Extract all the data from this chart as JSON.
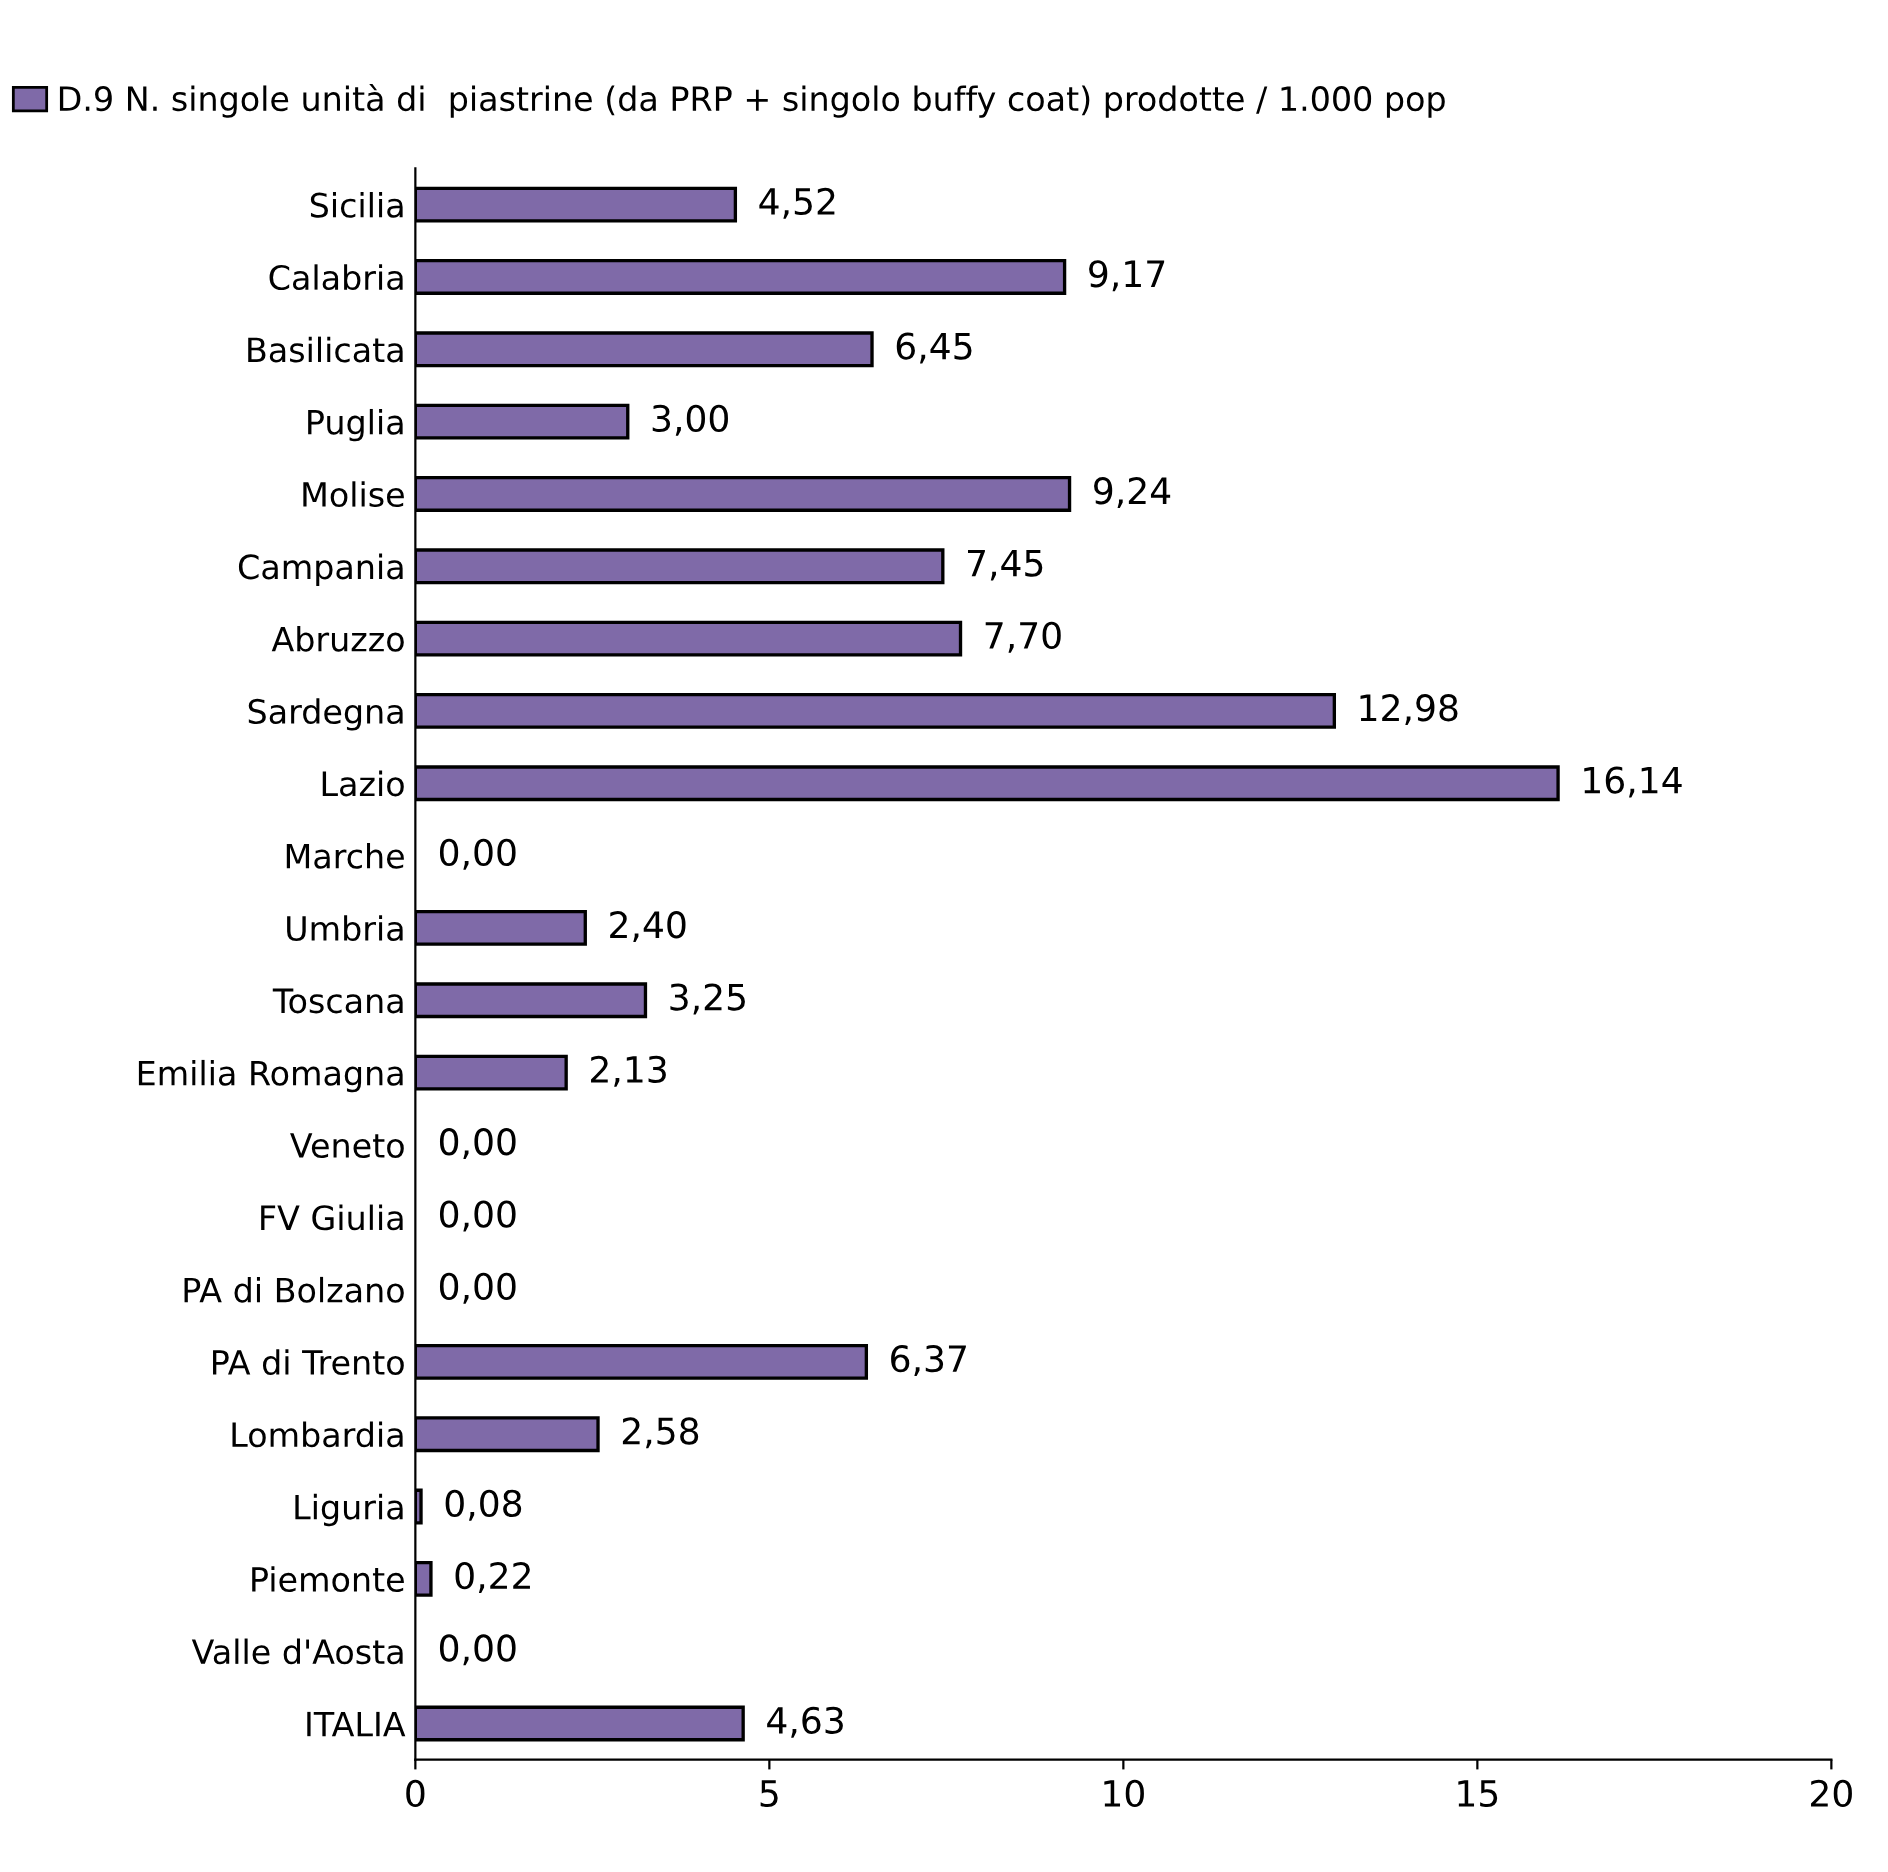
{
  "chart_data": {
    "type": "bar",
    "orientation": "horizontal",
    "categories": [
      "Sicilia",
      "Calabria",
      "Basilicata",
      "Puglia",
      "Molise",
      "Campania",
      "Abruzzo",
      "Sardegna",
      "Lazio",
      "Marche",
      "Umbria",
      "Toscana",
      "Emilia Romagna",
      "Veneto",
      "FV Giulia",
      "PA di Bolzano",
      "PA di Trento",
      "Lombardia",
      "Liguria",
      "Piemonte",
      "Valle d'Aosta",
      "ITALIA"
    ],
    "series": [
      {
        "name": "D.9 N. singole unità di  piastrine (da PRP + singolo buffy coat) prodotte / 1.000 pop",
        "color": "#7f6aa8",
        "values": [
          4.52,
          9.17,
          6.45,
          3.0,
          9.24,
          7.45,
          7.7,
          12.98,
          16.14,
          0.0,
          2.4,
          3.25,
          2.13,
          0.0,
          0.0,
          0.0,
          6.37,
          2.58,
          0.08,
          0.22,
          0.0,
          4.63
        ],
        "value_labels": [
          "4,52",
          "9,17",
          "6,45",
          "3,00",
          "9,24",
          "7,45",
          "7,70",
          "12,98",
          "16,14",
          "0,00",
          "2,40",
          "3,25",
          "2,13",
          "0,00",
          "0,00",
          "0,00",
          "6,37",
          "2,58",
          "0,08",
          "0,22",
          "0,00",
          "4,63"
        ]
      }
    ],
    "xlim": [
      0,
      20
    ],
    "xticks": [
      0,
      5,
      10,
      15,
      20
    ],
    "grid": false,
    "legend": "top left"
  }
}
